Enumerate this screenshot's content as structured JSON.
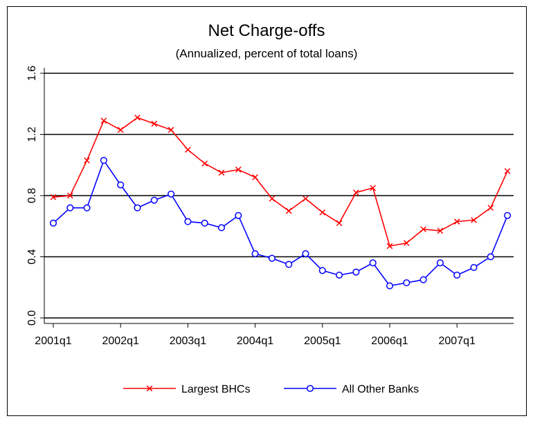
{
  "chart_data": {
    "type": "line",
    "title": "Net Charge-offs",
    "subtitle": "(Annualized, percent of total loans)",
    "xlabel": "",
    "ylabel": "",
    "ylim": [
      0.0,
      1.6
    ],
    "y_ticks": [
      "0.0",
      "0.4",
      "0.8",
      "1.2",
      "1.6"
    ],
    "y_tick_values": [
      0.0,
      0.4,
      0.8,
      1.2,
      1.6
    ],
    "x_ticks": [
      "2001q1",
      "2002q1",
      "2003q1",
      "2004q1",
      "2005q1",
      "2006q1",
      "2007q1"
    ],
    "x": [
      "2001q1",
      "2001q2",
      "2001q3",
      "2001q4",
      "2002q1",
      "2002q2",
      "2002q3",
      "2002q4",
      "2003q1",
      "2003q2",
      "2003q3",
      "2003q4",
      "2004q1",
      "2004q2",
      "2004q3",
      "2004q4",
      "2005q1",
      "2005q2",
      "2005q3",
      "2005q4",
      "2006q1",
      "2006q2",
      "2006q3",
      "2006q4",
      "2007q1",
      "2007q2",
      "2007q3",
      "2007q4"
    ],
    "grid": "horizontal",
    "legend_position": "bottom",
    "series": [
      {
        "name": "Largest BHCs",
        "color": "#ff0000",
        "marker": "x",
        "values": [
          0.79,
          0.8,
          1.03,
          1.29,
          1.23,
          1.31,
          1.27,
          1.23,
          1.1,
          1.01,
          0.95,
          0.97,
          0.92,
          0.78,
          0.7,
          0.78,
          0.69,
          0.62,
          0.82,
          0.85,
          0.47,
          0.49,
          0.58,
          0.57,
          0.63,
          0.64,
          0.72,
          0.96
        ]
      },
      {
        "name": "All Other Banks",
        "color": "#0000ff",
        "marker": "circle",
        "values": [
          0.62,
          0.72,
          0.72,
          1.03,
          0.87,
          0.72,
          0.77,
          0.81,
          0.63,
          0.62,
          0.59,
          0.67,
          0.42,
          0.39,
          0.35,
          0.42,
          0.31,
          0.28,
          0.3,
          0.36,
          0.21,
          0.23,
          0.25,
          0.36,
          0.28,
          0.33,
          0.4,
          0.67
        ]
      }
    ]
  }
}
